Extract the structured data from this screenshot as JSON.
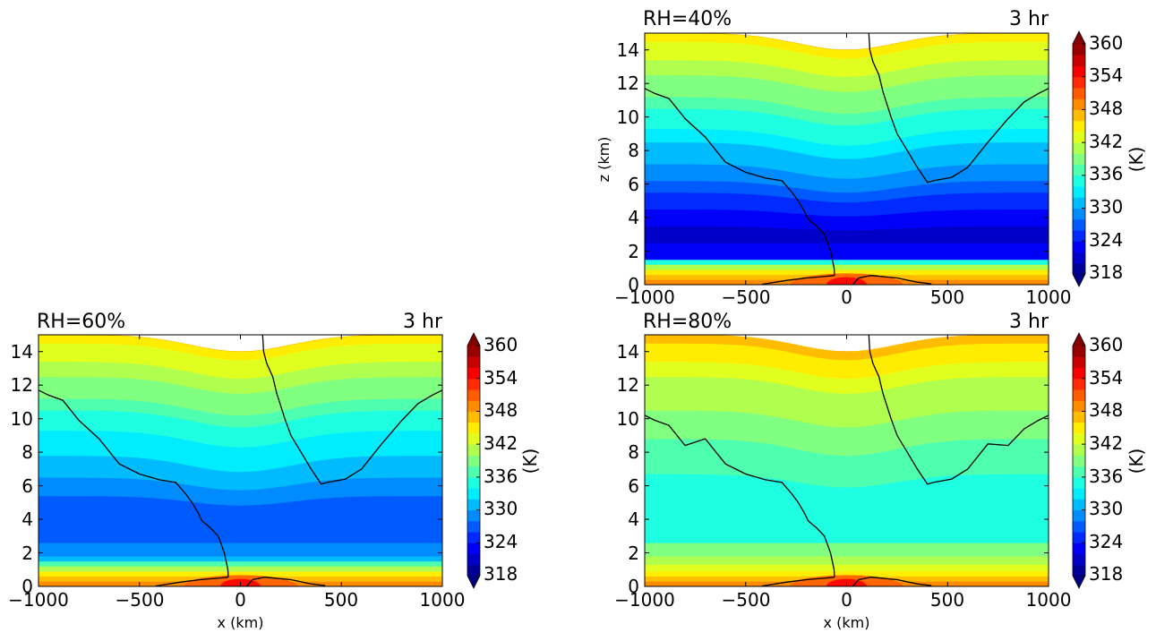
{
  "chart_data": [
    {
      "type": "heatmap",
      "panel": "top-right",
      "title_left": "RH=40%",
      "title_right": "3 hr",
      "xlabel": "",
      "ylabel": "z (km)",
      "xlim": [
        -1000,
        1000
      ],
      "ylim": [
        0,
        15
      ],
      "xticks": [
        "−1000",
        "−500",
        "0",
        "500",
        "1000"
      ],
      "xtick_values": [
        -1000,
        -500,
        0,
        500,
        1000
      ],
      "yticks": [
        "0",
        "2",
        "4",
        "6",
        "8",
        "10",
        "12",
        "14"
      ],
      "ytick_values": [
        0,
        2,
        4,
        6,
        8,
        10,
        12,
        14
      ],
      "colorbar": {
        "label": "(K)",
        "ticks": [
          "318",
          "324",
          "330",
          "336",
          "342",
          "348",
          "354",
          "360"
        ],
        "tick_values": [
          318,
          324,
          330,
          336,
          342,
          348,
          354,
          360
        ],
        "range": [
          318,
          360
        ],
        "step": 2
      },
      "band_profile": [
        [
          0,
          348
        ],
        [
          0.3,
          346
        ],
        [
          0.6,
          344
        ],
        [
          0.9,
          340
        ],
        [
          1.2,
          334
        ],
        [
          1.5,
          322
        ],
        [
          2.5,
          320
        ],
        [
          3.5,
          322
        ],
        [
          4.5,
          324
        ],
        [
          5.5,
          326
        ],
        [
          6.2,
          328
        ],
        [
          7.2,
          330
        ],
        [
          8.5,
          332
        ],
        [
          9.3,
          334
        ],
        [
          10.5,
          336
        ],
        [
          11.2,
          338
        ],
        [
          12.5,
          340
        ],
        [
          13.4,
          342
        ],
        [
          14.5,
          344
        ],
        [
          15,
          346
        ]
      ],
      "center_dip_km": 1.0
    },
    {
      "type": "heatmap",
      "panel": "bottom-left",
      "title_left": "RH=60%",
      "title_right": "3 hr",
      "xlabel": "x (km)",
      "ylabel": "",
      "xlim": [
        -1000,
        1000
      ],
      "ylim": [
        0,
        15
      ],
      "xticks": [
        "−1000",
        "−500",
        "0",
        "500",
        "1000"
      ],
      "xtick_values": [
        -1000,
        -500,
        0,
        500,
        1000
      ],
      "yticks": [
        "0",
        "2",
        "4",
        "6",
        "8",
        "10",
        "12",
        "14"
      ],
      "ytick_values": [
        0,
        2,
        4,
        6,
        8,
        10,
        12,
        14
      ],
      "colorbar": {
        "label": "(K)",
        "ticks": [
          "318",
          "324",
          "330",
          "336",
          "342",
          "348",
          "354",
          "360"
        ],
        "tick_values": [
          318,
          324,
          330,
          336,
          342,
          348,
          354,
          360
        ],
        "range": [
          318,
          360
        ],
        "step": 2
      },
      "band_profile": [
        [
          0,
          348
        ],
        [
          0.3,
          346
        ],
        [
          0.6,
          344
        ],
        [
          0.9,
          340
        ],
        [
          1.2,
          336
        ],
        [
          1.5,
          330
        ],
        [
          1.8,
          328
        ],
        [
          2.6,
          326
        ],
        [
          5.4,
          328
        ],
        [
          6.5,
          330
        ],
        [
          7.8,
          332
        ],
        [
          9.3,
          334
        ],
        [
          10.5,
          336
        ],
        [
          11.2,
          338
        ],
        [
          12.5,
          340
        ],
        [
          13.4,
          342
        ],
        [
          14.5,
          344
        ],
        [
          15,
          346
        ]
      ],
      "center_dip_km": 1.0
    },
    {
      "type": "heatmap",
      "panel": "bottom-right",
      "title_left": "RH=80%",
      "title_right": "3 hr",
      "xlabel": "x (km)",
      "ylabel": "",
      "xlim": [
        -1000,
        1000
      ],
      "ylim": [
        0,
        15
      ],
      "xticks": [
        "−1000",
        "−500",
        "0",
        "500",
        "1000"
      ],
      "xtick_values": [
        -1000,
        -500,
        0,
        500,
        1000
      ],
      "yticks": [
        "0",
        "2",
        "4",
        "6",
        "8",
        "10",
        "12",
        "14"
      ],
      "ytick_values": [
        0,
        2,
        4,
        6,
        8,
        10,
        12,
        14
      ],
      "colorbar": {
        "label": "(K)",
        "ticks": [
          "318",
          "324",
          "330",
          "336",
          "342",
          "348",
          "354",
          "360"
        ],
        "tick_values": [
          318,
          324,
          330,
          336,
          342,
          348,
          354,
          360
        ],
        "range": [
          318,
          360
        ],
        "step": 2
      },
      "band_profile": [
        [
          0,
          348
        ],
        [
          0.3,
          346
        ],
        [
          0.6,
          344
        ],
        [
          0.9,
          342
        ],
        [
          1.3,
          340
        ],
        [
          1.8,
          338
        ],
        [
          2.6,
          334
        ],
        [
          6.7,
          336
        ],
        [
          8.8,
          338
        ],
        [
          10.5,
          340
        ],
        [
          12.5,
          342
        ],
        [
          13.4,
          344
        ],
        [
          14.5,
          346
        ],
        [
          15,
          346
        ]
      ],
      "center_dip_km": 1.0
    }
  ]
}
